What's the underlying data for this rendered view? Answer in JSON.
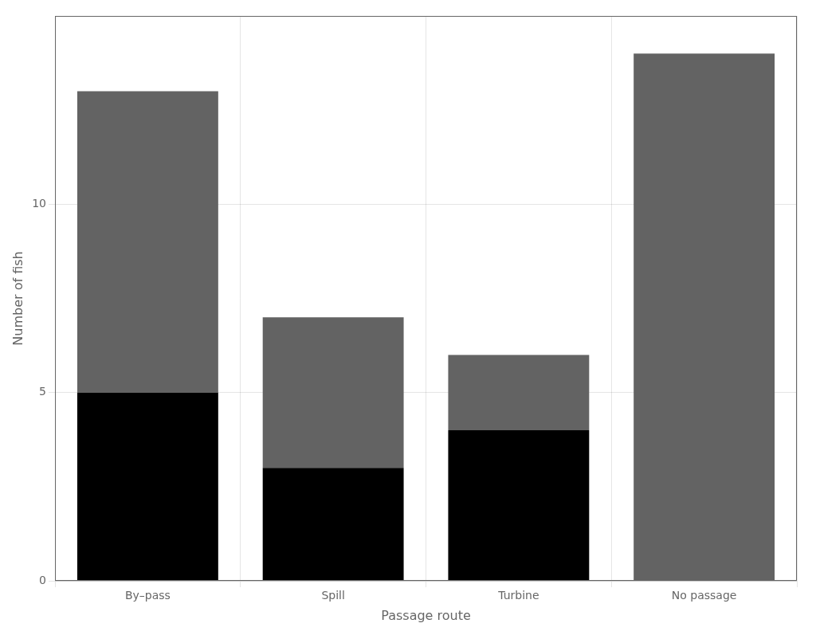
{
  "chart_data": {
    "type": "bar",
    "stacked": true,
    "categories": [
      "By–pass",
      "Spill",
      "Turbine",
      "No passage"
    ],
    "series": [
      {
        "color": "#000000",
        "values": [
          5,
          3,
          4,
          0
        ]
      },
      {
        "color": "#636363",
        "values": [
          8,
          4,
          2,
          14
        ]
      }
    ],
    "xlabel": "Passage route",
    "ylabel": "Number of fish",
    "ylim": [
      0,
      15
    ],
    "yticks": [
      0,
      5,
      10
    ],
    "grid": true
  }
}
